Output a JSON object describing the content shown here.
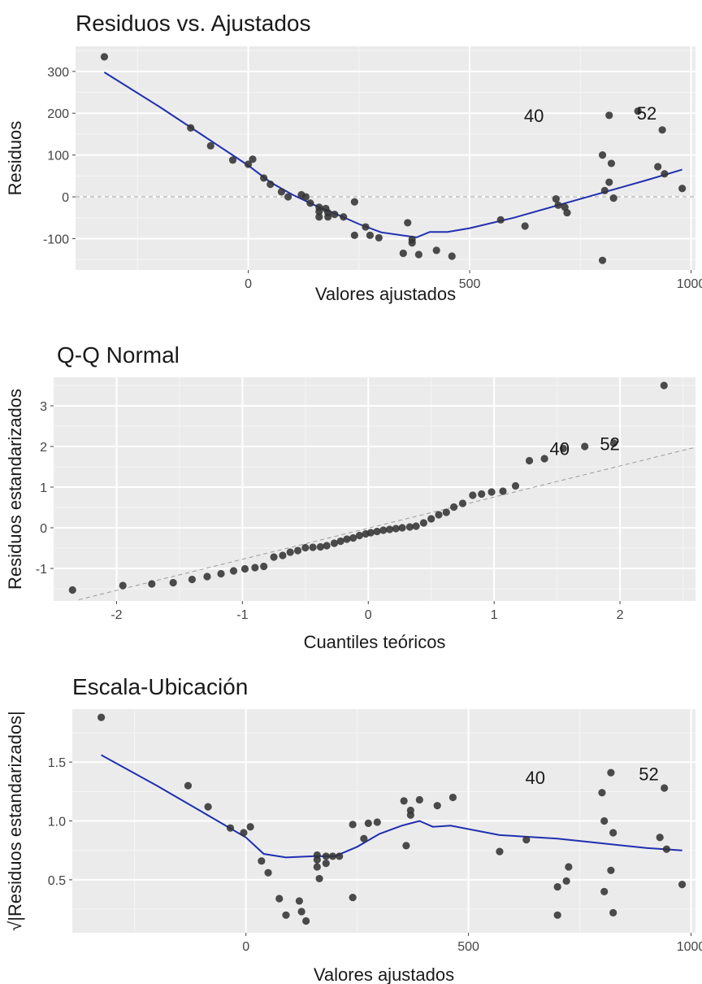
{
  "chart_data": [
    {
      "type": "scatter",
      "title": "Residuos vs. Ajustados",
      "xlabel": "Valores ajustados",
      "ylabel": "Residuos",
      "xlim": [
        -390,
        1010
      ],
      "ylim": [
        -175,
        360
      ],
      "xticks": [
        0,
        500,
        1000
      ],
      "yticks": [
        -100,
        0,
        100,
        200,
        300
      ],
      "grid": true,
      "reference_line": {
        "type": "horizontal",
        "y": 0,
        "style": "dashed"
      },
      "points": [
        [
          -325,
          335
        ],
        [
          -130,
          165
        ],
        [
          -85,
          122
        ],
        [
          -35,
          88
        ],
        [
          0,
          78
        ],
        [
          10,
          90
        ],
        [
          35,
          45
        ],
        [
          50,
          30
        ],
        [
          75,
          12
        ],
        [
          90,
          0
        ],
        [
          120,
          5
        ],
        [
          130,
          0
        ],
        [
          140,
          -15
        ],
        [
          160,
          -25
        ],
        [
          160,
          -35
        ],
        [
          160,
          -48
        ],
        [
          175,
          -28
        ],
        [
          180,
          -38
        ],
        [
          180,
          -48
        ],
        [
          195,
          -42
        ],
        [
          215,
          -48
        ],
        [
          240,
          -12
        ],
        [
          240,
          -92
        ],
        [
          265,
          -72
        ],
        [
          275,
          -92
        ],
        [
          295,
          -98
        ],
        [
          360,
          -62
        ],
        [
          370,
          -102
        ],
        [
          370,
          -110
        ],
        [
          350,
          -135
        ],
        [
          385,
          -138
        ],
        [
          425,
          -128
        ],
        [
          460,
          -142
        ],
        [
          570,
          -55
        ],
        [
          625,
          -70
        ],
        [
          695,
          -5
        ],
        [
          700,
          -20
        ],
        [
          715,
          -25
        ],
        [
          720,
          -38
        ],
        [
          800,
          100
        ],
        [
          805,
          15
        ],
        [
          815,
          35
        ],
        [
          820,
          80
        ],
        [
          825,
          -3
        ],
        [
          815,
          195
        ],
        [
          880,
          205
        ],
        [
          935,
          160
        ],
        [
          925,
          72
        ],
        [
          940,
          55
        ],
        [
          980,
          20
        ],
        [
          800,
          -152
        ]
      ],
      "smooth_line": [
        [
          -325,
          298
        ],
        [
          -200,
          215
        ],
        [
          -100,
          145
        ],
        [
          0,
          75
        ],
        [
          50,
          35
        ],
        [
          100,
          5
        ],
        [
          150,
          -20
        ],
        [
          200,
          -42
        ],
        [
          250,
          -65
        ],
        [
          300,
          -85
        ],
        [
          380,
          -97
        ],
        [
          410,
          -84
        ],
        [
          450,
          -84
        ],
        [
          500,
          -75
        ],
        [
          600,
          -50
        ],
        [
          700,
          -20
        ],
        [
          800,
          10
        ],
        [
          900,
          40
        ],
        [
          980,
          65
        ]
      ],
      "labels": [
        {
          "text": "40",
          "x": 645,
          "y": 195
        },
        {
          "text": "52",
          "x": 900,
          "y": 200
        }
      ]
    },
    {
      "type": "scatter",
      "title": "Q-Q Normal",
      "xlabel": "Cuantiles teóricos",
      "ylabel": "Residuos estandarizados",
      "xlim": [
        -2.5,
        2.6
      ],
      "ylim": [
        -1.8,
        3.7
      ],
      "xticks": [
        -2,
        -1,
        0,
        1,
        2
      ],
      "yticks": [
        -1,
        0,
        1,
        2,
        3
      ],
      "grid": true,
      "reference_line": {
        "type": "line",
        "x1": -2.3,
        "y1": -1.77,
        "x2": 2.6,
        "y2": 1.98,
        "style": "dashed"
      },
      "points": [
        [
          -2.35,
          -1.53
        ],
        [
          -1.95,
          -1.42
        ],
        [
          -1.72,
          -1.38
        ],
        [
          -1.55,
          -1.35
        ],
        [
          -1.4,
          -1.27
        ],
        [
          -1.28,
          -1.2
        ],
        [
          -1.17,
          -1.13
        ],
        [
          -1.07,
          -1.06
        ],
        [
          -0.98,
          -1.01
        ],
        [
          -0.9,
          -0.98
        ],
        [
          -0.83,
          -0.95
        ],
        [
          -0.75,
          -0.72
        ],
        [
          -0.68,
          -0.68
        ],
        [
          -0.62,
          -0.6
        ],
        [
          -0.56,
          -0.56
        ],
        [
          -0.5,
          -0.49
        ],
        [
          -0.44,
          -0.48
        ],
        [
          -0.38,
          -0.47
        ],
        [
          -0.33,
          -0.44
        ],
        [
          -0.27,
          -0.38
        ],
        [
          -0.22,
          -0.33
        ],
        [
          -0.17,
          -0.28
        ],
        [
          -0.12,
          -0.25
        ],
        [
          -0.07,
          -0.19
        ],
        [
          -0.02,
          -0.15
        ],
        [
          0.02,
          -0.12
        ],
        [
          0.07,
          -0.09
        ],
        [
          0.12,
          -0.06
        ],
        [
          0.17,
          -0.04
        ],
        [
          0.22,
          -0.02
        ],
        [
          0.27,
          0.0
        ],
        [
          0.33,
          0.02
        ],
        [
          0.38,
          0.04
        ],
        [
          0.44,
          0.12
        ],
        [
          0.5,
          0.22
        ],
        [
          0.56,
          0.32
        ],
        [
          0.62,
          0.38
        ],
        [
          0.68,
          0.51
        ],
        [
          0.75,
          0.6
        ],
        [
          0.83,
          0.8
        ],
        [
          0.9,
          0.83
        ],
        [
          0.98,
          0.88
        ],
        [
          1.07,
          0.9
        ],
        [
          1.17,
          1.03
        ],
        [
          1.28,
          1.65
        ],
        [
          1.4,
          1.7
        ],
        [
          1.55,
          1.95
        ],
        [
          1.72,
          2.0
        ],
        [
          1.95,
          2.08
        ],
        [
          2.35,
          3.5
        ]
      ],
      "labels": [
        {
          "text": "40",
          "x": 1.52,
          "y": 1.95
        },
        {
          "text": "52",
          "x": 1.92,
          "y": 2.07
        }
      ]
    },
    {
      "type": "scatter",
      "title": "Escala-Ubicación",
      "xlabel": "Valores ajustados",
      "ylabel": "√|Residuos estandarizados|",
      "xlim": [
        -390,
        1010
      ],
      "ylim": [
        0.05,
        1.95
      ],
      "xticks": [
        0,
        500,
        1000
      ],
      "yticks": [
        0.5,
        1.0,
        1.5
      ],
      "ytick_labels": [
        "0.5",
        "1.0",
        "1.5"
      ],
      "grid": true,
      "points": [
        [
          -325,
          1.88
        ],
        [
          -130,
          1.3
        ],
        [
          -85,
          1.12
        ],
        [
          -35,
          0.94
        ],
        [
          -5,
          0.9
        ],
        [
          10,
          0.95
        ],
        [
          35,
          0.66
        ],
        [
          50,
          0.56
        ],
        [
          75,
          0.34
        ],
        [
          90,
          0.2
        ],
        [
          120,
          0.32
        ],
        [
          125,
          0.23
        ],
        [
          135,
          0.15
        ],
        [
          160,
          0.61
        ],
        [
          160,
          0.67
        ],
        [
          160,
          0.71
        ],
        [
          165,
          0.51
        ],
        [
          180,
          0.7
        ],
        [
          180,
          0.64
        ],
        [
          195,
          0.7
        ],
        [
          210,
          0.7
        ],
        [
          240,
          0.97
        ],
        [
          240,
          0.35
        ],
        [
          265,
          0.85
        ],
        [
          275,
          0.98
        ],
        [
          295,
          0.99
        ],
        [
          360,
          0.79
        ],
        [
          370,
          1.05
        ],
        [
          370,
          1.09
        ],
        [
          355,
          1.17
        ],
        [
          390,
          1.18
        ],
        [
          430,
          1.13
        ],
        [
          465,
          1.2
        ],
        [
          570,
          0.74
        ],
        [
          630,
          0.84
        ],
        [
          700,
          0.2
        ],
        [
          700,
          0.44
        ],
        [
          720,
          0.49
        ],
        [
          725,
          0.61
        ],
        [
          800,
          1.24
        ],
        [
          805,
          1.0
        ],
        [
          805,
          0.4
        ],
        [
          820,
          0.58
        ],
        [
          825,
          0.9
        ],
        [
          820,
          1.41
        ],
        [
          825,
          0.22
        ],
        [
          940,
          1.28
        ],
        [
          930,
          0.86
        ],
        [
          945,
          0.76
        ],
        [
          980,
          0.46
        ]
      ],
      "smooth_line": [
        [
          -325,
          1.56
        ],
        [
          -200,
          1.3
        ],
        [
          -100,
          1.08
        ],
        [
          0,
          0.86
        ],
        [
          40,
          0.72
        ],
        [
          90,
          0.69
        ],
        [
          150,
          0.7
        ],
        [
          200,
          0.7
        ],
        [
          250,
          0.78
        ],
        [
          300,
          0.89
        ],
        [
          350,
          0.96
        ],
        [
          390,
          1.0
        ],
        [
          420,
          0.95
        ],
        [
          460,
          0.96
        ],
        [
          570,
          0.88
        ],
        [
          700,
          0.85
        ],
        [
          800,
          0.81
        ],
        [
          900,
          0.77
        ],
        [
          980,
          0.75
        ]
      ],
      "labels": [
        {
          "text": "40",
          "x": 650,
          "y": 1.37
        },
        {
          "text": "52",
          "x": 905,
          "y": 1.4
        }
      ]
    }
  ]
}
